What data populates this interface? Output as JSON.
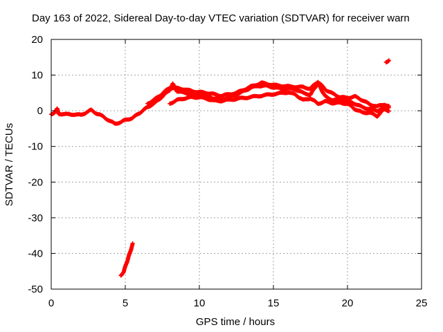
{
  "chart_data": {
    "type": "scatter",
    "title": "Day 163 of 2022, Sidereal Day-to-day VTEC variation (SDTVAR) for receiver warn",
    "xlabel": "GPS time / hours",
    "ylabel": "SDTVAR / TECUs",
    "xlim": [
      0,
      25
    ],
    "ylim": [
      -50,
      20
    ],
    "xticks": [
      0,
      5,
      10,
      15,
      20,
      25
    ],
    "yticks": [
      -50,
      -40,
      -30,
      -20,
      -10,
      0,
      10,
      20
    ],
    "xtick_labels": [
      "0",
      "5",
      "10",
      "15",
      "20",
      "25"
    ],
    "ytick_labels": [
      "-50",
      "-40",
      "-30",
      "-20",
      "-10",
      "0",
      "10",
      "20"
    ],
    "grid": true,
    "marker_color": "#ff0000",
    "series": [
      {
        "name": "main trace",
        "points": [
          [
            0.0,
            -1.0
          ],
          [
            0.2,
            -0.5
          ],
          [
            0.4,
            0.5
          ],
          [
            0.5,
            -0.8
          ],
          [
            1.0,
            -1.0
          ],
          [
            1.5,
            -1.0
          ],
          [
            2.0,
            -1.2
          ],
          [
            2.5,
            -0.2
          ],
          [
            2.7,
            0.2
          ],
          [
            3.0,
            -0.6
          ],
          [
            3.5,
            -1.6
          ],
          [
            4.0,
            -3.0
          ],
          [
            4.3,
            -3.6
          ],
          [
            4.7,
            -3.2
          ],
          [
            5.0,
            -2.6
          ],
          [
            5.5,
            -2.0
          ],
          [
            6.0,
            -0.5
          ],
          [
            6.5,
            1.0
          ],
          [
            7.0,
            2.2
          ],
          [
            7.5,
            4.0
          ],
          [
            8.0,
            5.8
          ],
          [
            8.2,
            7.5
          ],
          [
            8.5,
            5.5
          ],
          [
            9.0,
            5.0
          ],
          [
            9.5,
            4.8
          ],
          [
            10.0,
            4.5
          ],
          [
            10.5,
            4.0
          ],
          [
            11.0,
            3.5
          ],
          [
            11.5,
            3.2
          ],
          [
            12.0,
            3.8
          ],
          [
            12.5,
            4.5
          ],
          [
            13.0,
            5.5
          ],
          [
            13.5,
            6.5
          ],
          [
            14.0,
            7.0
          ],
          [
            14.5,
            7.0
          ],
          [
            15.0,
            6.6
          ],
          [
            15.5,
            6.2
          ],
          [
            16.0,
            6.2
          ],
          [
            16.5,
            6.0
          ],
          [
            17.0,
            5.0
          ],
          [
            17.5,
            4.5
          ],
          [
            18.0,
            7.8
          ],
          [
            18.5,
            4.0
          ],
          [
            19.0,
            3.0
          ],
          [
            19.5,
            3.0
          ],
          [
            20.0,
            2.8
          ],
          [
            20.5,
            2.0
          ],
          [
            21.0,
            1.0
          ],
          [
            21.5,
            0.5
          ],
          [
            22.0,
            0.0
          ],
          [
            22.5,
            1.0
          ],
          [
            22.8,
            1.0
          ]
        ]
      },
      {
        "name": "upper secondary trace",
        "points": [
          [
            6.5,
            2.0
          ],
          [
            7.0,
            3.2
          ],
          [
            7.5,
            4.8
          ],
          [
            8.0,
            6.5
          ],
          [
            8.5,
            6.3
          ],
          [
            9.0,
            6.0
          ],
          [
            9.5,
            5.5
          ],
          [
            10.0,
            5.2
          ],
          [
            10.5,
            5.0
          ],
          [
            11.0,
            4.6
          ],
          [
            11.5,
            4.2
          ],
          [
            12.5,
            5.0
          ],
          [
            13.5,
            6.8
          ],
          [
            14.2,
            7.8
          ],
          [
            15.0,
            7.2
          ],
          [
            16.0,
            6.8
          ],
          [
            17.0,
            6.6
          ],
          [
            17.5,
            6.2
          ],
          [
            18.0,
            8.2
          ],
          [
            18.5,
            6.0
          ],
          [
            19.0,
            4.8
          ],
          [
            19.5,
            3.8
          ],
          [
            20.0,
            3.6
          ],
          [
            20.5,
            4.0
          ],
          [
            21.0,
            3.0
          ],
          [
            21.5,
            1.8
          ],
          [
            22.0,
            1.2
          ],
          [
            22.5,
            1.8
          ],
          [
            22.8,
            1.2
          ]
        ]
      },
      {
        "name": "lower secondary trace",
        "points": [
          [
            8.0,
            2.0
          ],
          [
            8.5,
            3.0
          ],
          [
            9.0,
            3.5
          ],
          [
            9.5,
            3.8
          ],
          [
            10.0,
            3.8
          ],
          [
            10.5,
            3.4
          ],
          [
            11.0,
            2.8
          ],
          [
            11.5,
            2.8
          ],
          [
            16.0,
            5.2
          ],
          [
            16.5,
            4.5
          ],
          [
            17.0,
            3.0
          ],
          [
            17.5,
            3.5
          ],
          [
            18.0,
            2.0
          ],
          [
            18.5,
            2.6
          ],
          [
            19.0,
            2.2
          ],
          [
            19.5,
            2.2
          ],
          [
            20.0,
            2.0
          ],
          [
            20.5,
            0.5
          ],
          [
            21.0,
            -0.5
          ],
          [
            21.5,
            -0.5
          ],
          [
            22.0,
            -1.5
          ],
          [
            22.5,
            0.5
          ],
          [
            22.8,
            0.0
          ]
        ]
      },
      {
        "name": "low outlier trace",
        "points": [
          [
            4.7,
            -46.2
          ],
          [
            4.9,
            -45.0
          ],
          [
            5.1,
            -42.5
          ],
          [
            5.3,
            -40.0
          ],
          [
            5.5,
            -37.3
          ]
        ]
      },
      {
        "name": "high outlier trace",
        "points": [
          [
            22.6,
            13.6
          ],
          [
            22.7,
            13.9
          ],
          [
            22.8,
            14.2
          ]
        ]
      }
    ]
  }
}
